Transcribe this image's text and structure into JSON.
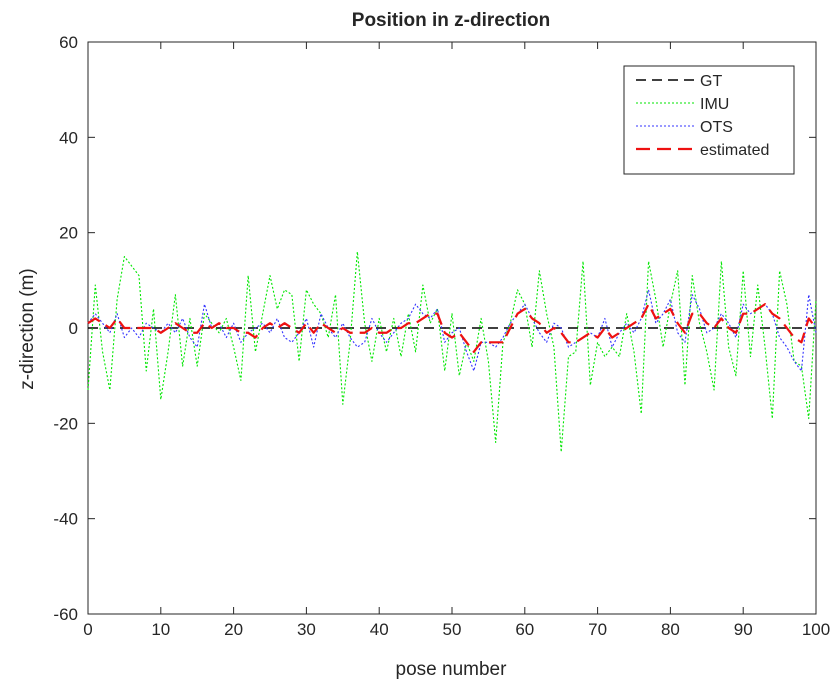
{
  "chart_data": {
    "type": "line",
    "title": "Position in z-direction",
    "xlabel": "pose number",
    "ylabel": "z-direction (m)",
    "xlim": [
      0,
      100
    ],
    "ylim": [
      -60,
      60
    ],
    "xticks": [
      0,
      10,
      20,
      30,
      40,
      50,
      60,
      70,
      80,
      90,
      100
    ],
    "yticks": [
      -60,
      -40,
      -20,
      0,
      20,
      40,
      60
    ],
    "grid": false,
    "legend_position": "top-right",
    "x": [
      0,
      1,
      2,
      3,
      4,
      5,
      6,
      7,
      8,
      9,
      10,
      11,
      12,
      13,
      14,
      15,
      16,
      17,
      18,
      19,
      20,
      21,
      22,
      23,
      24,
      25,
      26,
      27,
      28,
      29,
      30,
      31,
      32,
      33,
      34,
      35,
      36,
      37,
      38,
      39,
      40,
      41,
      42,
      43,
      44,
      45,
      46,
      47,
      48,
      49,
      50,
      51,
      52,
      53,
      54,
      55,
      56,
      57,
      58,
      59,
      60,
      61,
      62,
      63,
      64,
      65,
      66,
      67,
      68,
      69,
      70,
      71,
      72,
      73,
      74,
      75,
      76,
      77,
      78,
      79,
      80,
      81,
      82,
      83,
      84,
      85,
      86,
      87,
      88,
      89,
      90,
      91,
      92,
      93,
      94,
      95,
      96,
      97,
      98,
      99,
      100
    ],
    "series": [
      {
        "name": "GT",
        "color": "#000000",
        "dash": "10,6",
        "width": 1.6,
        "values": [
          0,
          0,
          0,
          0,
          0,
          0,
          0,
          0,
          0,
          0,
          0,
          0,
          0,
          0,
          0,
          0,
          0,
          0,
          0,
          0,
          0,
          0,
          0,
          0,
          0,
          0,
          0,
          0,
          0,
          0,
          0,
          0,
          0,
          0,
          0,
          0,
          0,
          0,
          0,
          0,
          0,
          0,
          0,
          0,
          0,
          0,
          0,
          0,
          0,
          0,
          0,
          0,
          0,
          0,
          0,
          0,
          0,
          0,
          0,
          0,
          0,
          0,
          0,
          0,
          0,
          0,
          0,
          0,
          0,
          0,
          0,
          0,
          0,
          0,
          0,
          0,
          0,
          0,
          0,
          0,
          0,
          0,
          0,
          0,
          0,
          0,
          0,
          0,
          0,
          0,
          0,
          0,
          0,
          0,
          0,
          0,
          0,
          0,
          0,
          0,
          0
        ]
      },
      {
        "name": "IMU",
        "color": "#00e600",
        "dash": "2,2",
        "width": 1.1,
        "values": [
          -13,
          9,
          -5,
          -13,
          6,
          15,
          13,
          11,
          -9,
          4,
          -15,
          -5,
          7,
          -8,
          2,
          -8,
          3,
          1,
          -1,
          2,
          -4,
          -11,
          11,
          -5,
          3,
          11,
          4,
          8,
          7,
          -7,
          8,
          5,
          3,
          -2,
          7,
          -16,
          -3,
          16,
          1,
          -7,
          2,
          -5,
          2,
          -6,
          3,
          -5,
          9,
          1,
          4,
          -9,
          3,
          -10,
          -3,
          -7,
          2,
          -7,
          -24,
          -3,
          1,
          8,
          5,
          -4,
          12,
          3,
          -4,
          -26,
          -6,
          -5,
          14,
          -12,
          -3,
          -6,
          -4,
          -6,
          3,
          -5,
          -18,
          14,
          6,
          -4,
          5,
          12,
          -12,
          11,
          1,
          -5,
          -13,
          14,
          -4,
          -10,
          12,
          -6,
          9,
          -4,
          -19,
          12,
          5,
          -7,
          -8,
          -19,
          6
        ]
      },
      {
        "name": "OTS",
        "color": "#3333ff",
        "dash": "2,2",
        "width": 1.1,
        "values": [
          1,
          3,
          1,
          -1,
          3,
          -2,
          0,
          -2,
          1,
          0,
          -1,
          1,
          -1,
          2,
          -2,
          -4,
          5,
          0,
          1,
          -2,
          1,
          -3,
          -1,
          0,
          1,
          -1,
          2,
          -2,
          -3,
          -1,
          2,
          -4,
          3,
          0,
          -2,
          1,
          -2,
          -4,
          -3,
          2,
          -1,
          -3,
          -1,
          1,
          2,
          5,
          3,
          2,
          4,
          -3,
          -1,
          0,
          -5,
          -9,
          -3,
          -3,
          -4,
          -2,
          1,
          3,
          5,
          2,
          -1,
          -3,
          1,
          0,
          -4,
          -3,
          -2,
          -1,
          -2,
          2,
          -4,
          -1,
          1,
          -1,
          2,
          8,
          1,
          3,
          6,
          -1,
          -3,
          7,
          4,
          -1,
          0,
          3,
          1,
          -2,
          5,
          3,
          4,
          5,
          3,
          -2,
          -4,
          -7,
          -9,
          7,
          -1
        ]
      },
      {
        "name": "estimated",
        "color": "#ee1111",
        "dash": "14,7",
        "width": 2.2,
        "values": [
          1,
          2,
          1,
          0,
          2,
          0,
          0,
          0,
          0,
          0,
          -1,
          0,
          1,
          0,
          -1,
          -1,
          1,
          0,
          1,
          0,
          0,
          -1,
          -1,
          -2,
          0,
          1,
          0,
          1,
          0,
          -1,
          1,
          -1,
          1,
          0,
          -1,
          0,
          -1,
          -1,
          -1,
          0,
          -1,
          -1,
          0,
          0,
          1,
          1,
          2,
          3,
          3,
          -1,
          -2,
          -1,
          -3,
          -5,
          -3,
          -3,
          -3,
          -3,
          0,
          3,
          4,
          2,
          1,
          -1,
          0,
          -1,
          -3,
          -3,
          -2,
          -1,
          -2,
          0,
          -2,
          -1,
          0,
          1,
          2,
          5,
          2,
          3,
          4,
          1,
          -1,
          3,
          3,
          1,
          0,
          2,
          0,
          -1,
          3,
          3,
          4,
          5,
          3,
          2,
          0,
          -2,
          -3,
          2,
          0
        ]
      }
    ]
  }
}
